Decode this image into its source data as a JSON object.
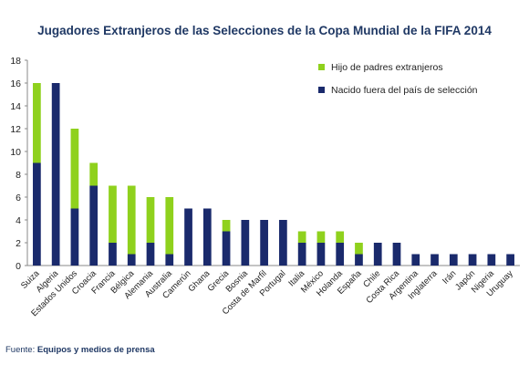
{
  "chart_data": {
    "type": "bar",
    "stacked": true,
    "title": "Jugadores Extranjeros de las Selecciones de la Copa Mundial de la FIFA 2014",
    "source_label": "Fuente:",
    "source_text": "Equipos y medios de prensa",
    "ylim": [
      0,
      18
    ],
    "yticks": [
      0,
      2,
      4,
      6,
      8,
      10,
      12,
      14,
      16,
      18
    ],
    "grid": false,
    "legend_position": "top-right",
    "categories": [
      "Suiza",
      "Algeria",
      "Estados Unidos",
      "Croacia",
      "Francia",
      "Bélgica",
      "Alemania",
      "Australia",
      "Camerún",
      "Ghana",
      "Grecia",
      "Bosnia",
      "Costa de Marfil",
      "Portugal",
      "Italia",
      "México",
      "Holanda",
      "España",
      "Chile",
      "Costa Rica",
      "Argentina",
      "Inglaterra",
      "Irán",
      "Japón",
      "Nigeria",
      "Uruguay"
    ],
    "series": [
      {
        "name": "Nacido fuera del país de selección",
        "color": "#1a2a6c",
        "values": [
          9,
          16,
          5,
          7,
          2,
          1,
          2,
          1,
          5,
          5,
          3,
          4,
          4,
          4,
          2,
          2,
          2,
          1,
          2,
          2,
          1,
          1,
          1,
          1,
          1,
          1
        ]
      },
      {
        "name": "Hijo de padres extranjeros",
        "color": "#8fd11d",
        "values": [
          7,
          0,
          7,
          2,
          5,
          6,
          4,
          5,
          0,
          0,
          1,
          0,
          0,
          0,
          1,
          1,
          1,
          1,
          0,
          0,
          0,
          0,
          0,
          0,
          0,
          0
        ]
      }
    ]
  }
}
